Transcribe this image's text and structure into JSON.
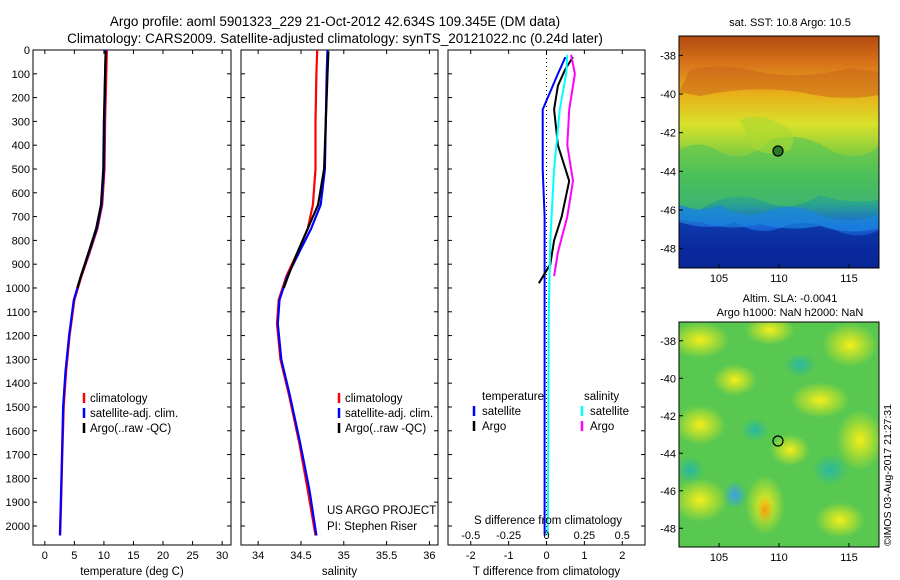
{
  "header": {
    "line1": "Argo profile: aoml 5901323_229 21-Oct-2012 42.634S 109.345E (DM data)",
    "line2": "Climatology: CARS2009. Satellite-adjusted climatology: synTS_20121022.nc (0.24d later)"
  },
  "colors": {
    "climatology": "#ff0000",
    "satellite": "#0000ff",
    "argo": "#000000",
    "sal_satellite": "#00ffff",
    "sal_argo": "#ff00ff"
  },
  "chart_data": [
    {
      "type": "line",
      "xlabel": "temperature (deg C)",
      "ylabel": "",
      "xlim": [
        -2,
        31.5
      ],
      "ylim": [
        2080,
        0
      ],
      "xticks": [
        0,
        5,
        10,
        15,
        20,
        25,
        30
      ],
      "yticks": [
        0,
        100,
        200,
        300,
        400,
        500,
        600,
        700,
        800,
        900,
        1000,
        1100,
        1200,
        1300,
        1400,
        1500,
        1600,
        1700,
        1800,
        1900,
        2000
      ],
      "legend": [
        "climatology",
        "satellite-adj. clim.",
        "Argo(..raw -QC)"
      ],
      "legend_position": "lower-center",
      "series": [
        {
          "name": "climatology",
          "color": "#ff0000",
          "points": [
            [
              10.5,
              0
            ],
            [
              10.4,
              100
            ],
            [
              10.2,
              300
            ],
            [
              10.1,
              500
            ],
            [
              9.7,
              650
            ],
            [
              8.9,
              750
            ],
            [
              7.6,
              850
            ],
            [
              6.2,
              950
            ],
            [
              5.0,
              1050
            ],
            [
              4.2,
              1200
            ],
            [
              3.6,
              1350
            ],
            [
              3.2,
              1500
            ],
            [
              2.95,
              1700
            ],
            [
              2.75,
              1900
            ],
            [
              2.6,
              2040
            ]
          ]
        },
        {
          "name": "satellite-adj. clim.",
          "color": "#0000ff",
          "points": [
            [
              10.3,
              0
            ],
            [
              10.2,
              100
            ],
            [
              10.1,
              300
            ],
            [
              10.0,
              500
            ],
            [
              9.6,
              650
            ],
            [
              8.8,
              750
            ],
            [
              7.5,
              850
            ],
            [
              6.1,
              950
            ],
            [
              4.9,
              1050
            ],
            [
              4.1,
              1200
            ],
            [
              3.5,
              1350
            ],
            [
              3.1,
              1500
            ],
            [
              2.9,
              1700
            ],
            [
              2.7,
              1900
            ],
            [
              2.55,
              2040
            ]
          ]
        },
        {
          "name": "Argo(..raw -QC)",
          "color": "#000000",
          "points": [
            [
              10.3,
              5
            ],
            [
              10.2,
              100
            ],
            [
              10.0,
              300
            ],
            [
              9.9,
              500
            ],
            [
              9.5,
              650
            ],
            [
              8.7,
              750
            ],
            [
              7.4,
              850
            ],
            [
              6.1,
              950
            ],
            [
              5.5,
              1000
            ]
          ]
        }
      ]
    },
    {
      "type": "line",
      "xlabel": "salinity",
      "ylabel": "",
      "xlim": [
        33.8,
        36.1
      ],
      "ylim": [
        2080,
        0
      ],
      "xticks": [
        34,
        34.5,
        35,
        35.5,
        36
      ],
      "legend": [
        "climatology",
        "satellite-adj. clim.",
        "Argo(..raw -QC)"
      ],
      "legend_position": "lower-right",
      "annotation": [
        "US ARGO PROJECT",
        "PI: Stephen Riser"
      ],
      "series": [
        {
          "name": "climatology",
          "color": "#ff0000",
          "points": [
            [
              34.69,
              0
            ],
            [
              34.68,
              100
            ],
            [
              34.67,
              300
            ],
            [
              34.67,
              500
            ],
            [
              34.64,
              650
            ],
            [
              34.58,
              750
            ],
            [
              34.46,
              850
            ],
            [
              34.33,
              950
            ],
            [
              34.24,
              1050
            ],
            [
              34.22,
              1150
            ],
            [
              34.26,
              1300
            ],
            [
              34.36,
              1450
            ],
            [
              34.48,
              1650
            ],
            [
              34.58,
              1850
            ],
            [
              34.67,
              2040
            ]
          ]
        },
        {
          "name": "satellite-adj. clim.",
          "color": "#0000ff",
          "points": [
            [
              34.81,
              0
            ],
            [
              34.8,
              100
            ],
            [
              34.79,
              300
            ],
            [
              34.78,
              500
            ],
            [
              34.73,
              650
            ],
            [
              34.62,
              750
            ],
            [
              34.48,
              850
            ],
            [
              34.34,
              950
            ],
            [
              34.25,
              1050
            ],
            [
              34.23,
              1150
            ],
            [
              34.27,
              1300
            ],
            [
              34.37,
              1450
            ],
            [
              34.49,
              1650
            ],
            [
              34.6,
              1850
            ],
            [
              34.68,
              2040
            ]
          ]
        },
        {
          "name": "Argo(..raw -QC)",
          "color": "#000000",
          "points": [
            [
              34.82,
              5
            ],
            [
              34.81,
              100
            ],
            [
              34.79,
              300
            ],
            [
              34.77,
              500
            ],
            [
              34.7,
              650
            ],
            [
              34.58,
              750
            ],
            [
              34.46,
              850
            ],
            [
              34.35,
              950
            ],
            [
              34.3,
              1000
            ]
          ]
        }
      ]
    },
    {
      "type": "line",
      "xlabel": "T difference from climatology",
      "ylabel": "",
      "top_axis_label": "S difference from climatology",
      "xlim": [
        -2.6,
        2.6
      ],
      "ylim": [
        2080,
        0
      ],
      "xticks": [
        -2,
        -1,
        0,
        1,
        2
      ],
      "xtick_labels": [
        "-2",
        "-1",
        "0",
        "1",
        "2"
      ],
      "s_ticks": [
        -0.5,
        -0.25,
        0,
        0.25,
        0.5
      ],
      "s_tick_labels": [
        "-0.5",
        "-0.25",
        "0",
        "0.25",
        "0.5"
      ],
      "legend_columns": [
        {
          "title": "temperature",
          "entries": [
            {
              "name": "satellite",
              "color": "#0000ff"
            },
            {
              "name": "Argo",
              "color": "#000000"
            }
          ]
        },
        {
          "title": "salinity",
          "entries": [
            {
              "name": "satellite",
              "color": "#00ffff"
            },
            {
              "name": "Argo",
              "color": "#ff00ff"
            }
          ]
        }
      ],
      "series": [
        {
          "name": "T satellite",
          "color": "#0000ff",
          "points": [
            [
              0.5,
              30
            ],
            [
              0.3,
              100
            ],
            [
              -0.1,
              250
            ],
            [
              -0.1,
              500
            ],
            [
              -0.05,
              700
            ],
            [
              -0.05,
              900
            ],
            [
              -0.05,
              1200
            ],
            [
              -0.05,
              1500
            ],
            [
              -0.05,
              1800
            ],
            [
              -0.05,
              2040
            ]
          ]
        },
        {
          "name": "T Argo",
          "color": "#000000",
          "points": [
            [
              0.7,
              30
            ],
            [
              0.5,
              80
            ],
            [
              0.3,
              150
            ],
            [
              0.2,
              250
            ],
            [
              0.3,
              400
            ],
            [
              0.6,
              550
            ],
            [
              0.4,
              700
            ],
            [
              0.2,
              800
            ],
            [
              0.1,
              900
            ],
            [
              -0.2,
              980
            ]
          ]
        },
        {
          "name": "S satellite",
          "color": "#00ffff",
          "points": [
            [
              0.55,
              20
            ],
            [
              0.52,
              100
            ],
            [
              0.35,
              250
            ],
            [
              0.2,
              500
            ],
            [
              0.1,
              800
            ],
            [
              0.06,
              1100
            ],
            [
              0.05,
              1500
            ],
            [
              0.04,
              1900
            ],
            [
              0.03,
              2040
            ]
          ]
        },
        {
          "name": "S Argo",
          "color": "#ff00ff",
          "points": [
            [
              0.65,
              20
            ],
            [
              0.75,
              100
            ],
            [
              0.6,
              250
            ],
            [
              0.55,
              400
            ],
            [
              0.7,
              550
            ],
            [
              0.55,
              700
            ],
            [
              0.3,
              850
            ],
            [
              0.2,
              950
            ]
          ]
        }
      ]
    }
  ],
  "maps": {
    "sst": {
      "title": "sat. SST: 10.8 Argo: 10.5",
      "yticks": [
        "-38",
        "-40",
        "-42",
        "-44",
        "-46",
        "-48"
      ],
      "xticks": [
        "105",
        "110",
        "115"
      ]
    },
    "sla": {
      "title_line1": "Altim. SLA: -0.0041",
      "title_line2": "Argo h1000: NaN h2000: NaN",
      "yticks": [
        "-38",
        "-40",
        "-42",
        "-44",
        "-46",
        "-48"
      ],
      "xticks": [
        "105",
        "110",
        "115"
      ]
    }
  },
  "side_stamp": "©IMOS 03-Aug-2017 21:27:31"
}
